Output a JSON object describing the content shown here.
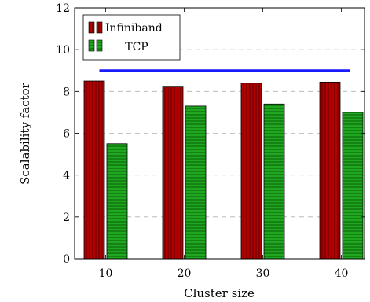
{
  "chart_data": {
    "type": "bar",
    "xlabel": "Cluster size",
    "ylabel": "Scalability factor",
    "categories": [
      "10",
      "20",
      "30",
      "40"
    ],
    "ylim": [
      0,
      12
    ],
    "yticks": [
      "0",
      "2",
      "4",
      "6",
      "8",
      "10",
      "12"
    ],
    "grid": "horizontal dashed",
    "legend_position": "top-left",
    "series": [
      {
        "name": "Infiniband",
        "values": [
          8.5,
          8.25,
          8.4,
          8.45
        ],
        "color": "#b30000",
        "pattern": "vertical-lines"
      },
      {
        "name": "TCP",
        "values": [
          5.5,
          7.3,
          7.4,
          7.0
        ],
        "color": "#1fa81f",
        "pattern": "horizontal-lines"
      }
    ],
    "reference_line": {
      "y": 9,
      "x_from": "10",
      "x_to": "40",
      "color": "#1a1aff"
    }
  }
}
